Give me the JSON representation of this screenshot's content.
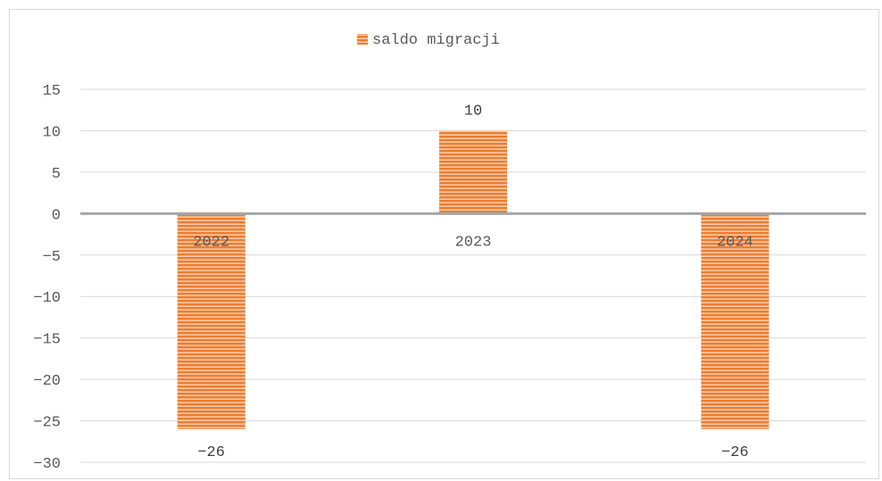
{
  "chart_data": {
    "type": "bar",
    "title": "",
    "xlabel": "",
    "ylabel": "",
    "categories": [
      "2022",
      "2023",
      "2024"
    ],
    "series": [
      {
        "name": "saldo migracji",
        "values": [
          -26,
          10,
          -26
        ],
        "color": "#ED7D31"
      }
    ],
    "data_labels": [
      "-26",
      "10",
      "-26"
    ],
    "ylim": [
      -30,
      15
    ],
    "yticks": [
      15,
      10,
      5,
      0,
      -5,
      -10,
      -15,
      -20,
      -25,
      -30
    ],
    "ytick_labels": [
      "15",
      "10",
      "5",
      "0",
      "−5",
      "−10",
      "−15",
      "−20",
      "−25",
      "−30"
    ],
    "grid": true,
    "legend_position": "top"
  }
}
